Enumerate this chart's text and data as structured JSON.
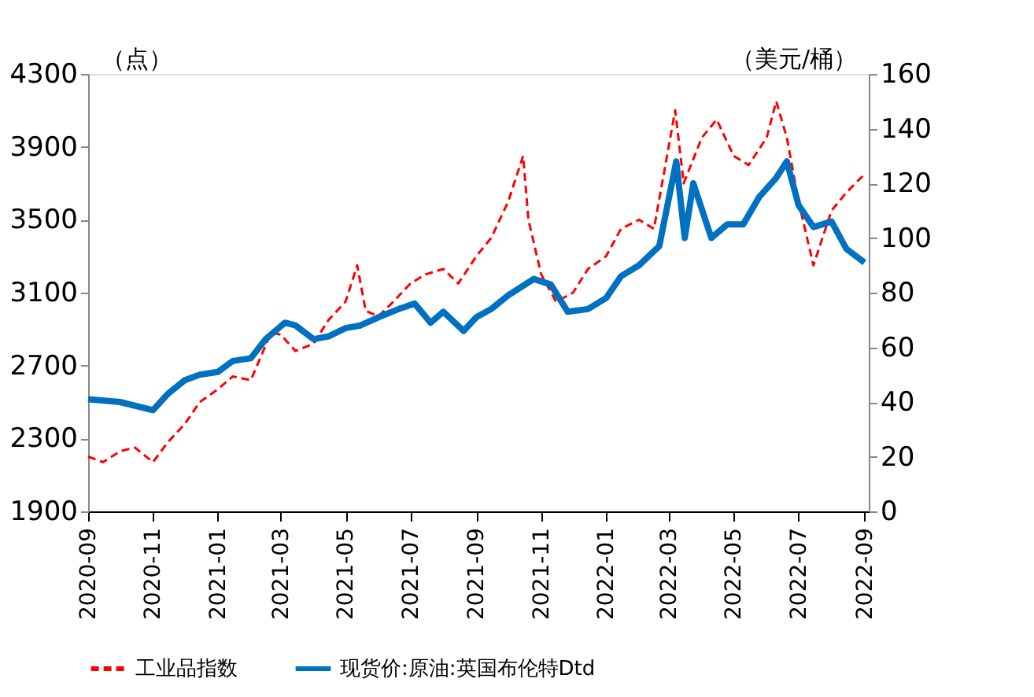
{
  "chart_data": {
    "type": "line",
    "ylabel": "（点）",
    "y2label": "（美元/桶）",
    "xlim": [
      "2020-09-01",
      "2022-09-05"
    ],
    "xticks": [
      {
        "value": "2020-09-01",
        "label": "2020-09"
      },
      {
        "value": "2020-11-01",
        "label": "2020-11"
      },
      {
        "value": "2021-01-01",
        "label": "2021-01"
      },
      {
        "value": "2021-03-01",
        "label": "2021-03"
      },
      {
        "value": "2021-05-01",
        "label": "2021-05"
      },
      {
        "value": "2021-07-01",
        "label": "2021-07"
      },
      {
        "value": "2021-09-01",
        "label": "2021-09"
      },
      {
        "value": "2021-11-01",
        "label": "2021-11"
      },
      {
        "value": "2022-01-01",
        "label": "2022-01"
      },
      {
        "value": "2022-03-01",
        "label": "2022-03"
      },
      {
        "value": "2022-05-01",
        "label": "2022-05"
      },
      {
        "value": "2022-07-01",
        "label": "2022-07"
      },
      {
        "value": "2022-09-01",
        "label": "2022-09"
      }
    ],
    "ylim": [
      1900,
      4300
    ],
    "yticks": [
      1900,
      2300,
      2700,
      3100,
      3500,
      3900,
      4300
    ],
    "y2lim": [
      0,
      160
    ],
    "y2ticks": [
      0,
      20,
      40,
      60,
      80,
      100,
      120,
      140,
      160
    ],
    "grid": false,
    "legend": "bottom",
    "series": [
      {
        "name": "工业品指数",
        "color": "#ff0000",
        "line_style": "dashed",
        "axis": "y",
        "x": [
          "2020-09-01",
          "2020-09-15",
          "2020-10-01",
          "2020-10-15",
          "2020-11-01",
          "2020-11-15",
          "2020-12-01",
          "2020-12-15",
          "2021-01-01",
          "2021-01-15",
          "2021-02-01",
          "2021-02-20",
          "2021-03-01",
          "2021-03-15",
          "2021-04-01",
          "2021-04-15",
          "2021-05-01",
          "2021-05-12",
          "2021-05-20",
          "2021-06-01",
          "2021-06-15",
          "2021-07-01",
          "2021-07-15",
          "2021-08-01",
          "2021-08-15",
          "2021-09-01",
          "2021-09-15",
          "2021-10-01",
          "2021-10-15",
          "2021-10-20",
          "2021-11-01",
          "2021-11-15",
          "2021-12-01",
          "2021-12-15",
          "2022-01-01",
          "2022-01-15",
          "2022-02-01",
          "2022-02-15",
          "2022-03-07",
          "2022-03-15",
          "2022-04-01",
          "2022-04-15",
          "2022-05-01",
          "2022-05-15",
          "2022-06-01",
          "2022-06-10",
          "2022-06-20",
          "2022-07-01",
          "2022-07-15",
          "2022-08-01",
          "2022-08-15",
          "2022-09-01"
        ],
        "values": [
          2200,
          2170,
          2230,
          2250,
          2170,
          2280,
          2380,
          2500,
          2570,
          2640,
          2620,
          2880,
          2870,
          2780,
          2820,
          2950,
          3050,
          3250,
          3000,
          2970,
          3050,
          3150,
          3200,
          3230,
          3150,
          3300,
          3400,
          3600,
          3850,
          3500,
          3200,
          3050,
          3100,
          3230,
          3300,
          3450,
          3500,
          3450,
          4100,
          3700,
          3950,
          4050,
          3850,
          3800,
          3950,
          4150,
          3950,
          3600,
          3250,
          3550,
          3650,
          3750
        ]
      },
      {
        "name": "现货价:原油:英国布伦特Dtd",
        "color": "#0070c0",
        "line_style": "solid",
        "axis": "y2",
        "x": [
          "2020-09-01",
          "2020-10-01",
          "2020-11-01",
          "2020-11-15",
          "2020-12-01",
          "2020-12-15",
          "2021-01-01",
          "2021-01-15",
          "2021-02-01",
          "2021-02-15",
          "2021-03-05",
          "2021-03-15",
          "2021-04-01",
          "2021-04-15",
          "2021-05-01",
          "2021-05-15",
          "2021-06-01",
          "2021-06-20",
          "2021-07-05",
          "2021-07-20",
          "2021-08-01",
          "2021-08-20",
          "2021-09-01",
          "2021-09-15",
          "2021-10-01",
          "2021-10-25",
          "2021-11-10",
          "2021-11-26",
          "2021-12-15",
          "2022-01-01",
          "2022-01-15",
          "2022-02-01",
          "2022-02-20",
          "2022-03-08",
          "2022-03-16",
          "2022-03-24",
          "2022-04-10",
          "2022-04-25",
          "2022-05-10",
          "2022-05-25",
          "2022-06-10",
          "2022-06-20",
          "2022-07-01",
          "2022-07-15",
          "2022-08-01",
          "2022-08-15",
          "2022-09-01"
        ],
        "values": [
          41,
          40,
          37,
          43,
          48,
          50,
          51,
          55,
          56,
          63,
          69,
          68,
          63,
          64,
          67,
          68,
          71,
          74,
          76,
          69,
          73,
          66,
          71,
          74,
          79,
          85,
          83,
          73,
          74,
          78,
          86,
          90,
          97,
          128,
          100,
          120,
          100,
          105,
          105,
          115,
          122,
          128,
          112,
          104,
          106,
          96,
          91
        ]
      }
    ]
  }
}
